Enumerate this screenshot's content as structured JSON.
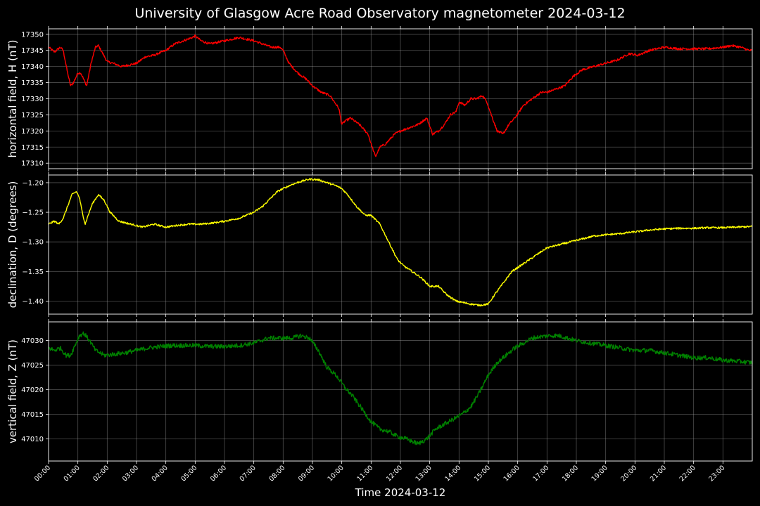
{
  "title": "University of Glasgow Acre Road Observatory magnetometer 2024-03-12",
  "chart_data": {
    "type": "line",
    "title": "University of Glasgow Acre Road Observatory magnetometer 2024-03-12",
    "xlabel": "Time 2024-03-12",
    "x_ticks": [
      "00:00",
      "01:00",
      "02:00",
      "03:00",
      "04:00",
      "05:00",
      "06:00",
      "07:00",
      "08:00",
      "09:00",
      "10:00",
      "11:00",
      "12:00",
      "13:00",
      "14:00",
      "15:00",
      "16:00",
      "17:00",
      "18:00",
      "19:00",
      "20:00",
      "21:00",
      "22:00",
      "23:00"
    ],
    "xlim": [
      0,
      24
    ],
    "grid": true,
    "panels": [
      {
        "name": "horizontal",
        "ylabel": "horizontal field, H (nT)",
        "color": "#ff0000",
        "ylim": [
          17308.3,
          17351.7
        ],
        "yticks": [
          17310,
          17315,
          17320,
          17325,
          17330,
          17335,
          17340,
          17345,
          17350
        ],
        "ytick_labels": [
          "17310",
          "17315",
          "17320",
          "17325",
          "17330",
          "17335",
          "17340",
          "17345",
          "17350"
        ],
        "noise": 0.35,
        "x": [
          0,
          0.2,
          0.4,
          0.5,
          0.65,
          0.75,
          0.85,
          1.0,
          1.1,
          1.2,
          1.3,
          1.45,
          1.6,
          1.7,
          1.85,
          2.0,
          2.2,
          2.5,
          3.0,
          3.3,
          3.6,
          4.0,
          4.3,
          4.6,
          4.9,
          5.0,
          5.2,
          5.5,
          6.0,
          6.5,
          7.0,
          7.3,
          7.6,
          7.9,
          8.0,
          8.2,
          8.5,
          8.8,
          9.0,
          9.3,
          9.6,
          9.9,
          10.0,
          10.1,
          10.3,
          10.6,
          10.9,
          11.0,
          11.15,
          11.3,
          11.5,
          11.8,
          12.0,
          12.3,
          12.6,
          12.9,
          13.1,
          13.3,
          13.5,
          13.7,
          13.9,
          14.0,
          14.2,
          14.4,
          14.6,
          14.8,
          14.95,
          15.1,
          15.3,
          15.5,
          15.7,
          15.9,
          16.2,
          16.5,
          16.8,
          17.0,
          17.3,
          17.6,
          17.9,
          18.2,
          18.6,
          19.0,
          19.4,
          19.8,
          20.1,
          20.5,
          21.0,
          21.5,
          22.0,
          22.5,
          23.0,
          23.3,
          23.6,
          23.9,
          24.0
        ],
        "y": [
          17346,
          17344.5,
          17346,
          17345,
          17338,
          17334,
          17335,
          17338,
          17338,
          17336,
          17334,
          17341,
          17346,
          17346.5,
          17344,
          17341.5,
          17341,
          17340,
          17341,
          17343,
          17343.5,
          17345,
          17347,
          17348,
          17349,
          17349.5,
          17348,
          17347,
          17348,
          17349,
          17348,
          17347,
          17346,
          17346,
          17345,
          17341,
          17338,
          17336,
          17334,
          17332,
          17331,
          17327,
          17322,
          17323,
          17324,
          17322,
          17319,
          17316,
          17312,
          17315,
          17316,
          17319,
          17320,
          17321,
          17322,
          17324,
          17319,
          17320,
          17322,
          17325,
          17326,
          17329,
          17328,
          17330,
          17330,
          17331,
          17329,
          17325,
          17320,
          17319,
          17322,
          17324,
          17328,
          17330,
          17332,
          17332,
          17333,
          17334,
          17337,
          17339,
          17340,
          17341,
          17342,
          17344,
          17343.5,
          17345,
          17346,
          17345.5,
          17345.5,
          17345.5,
          17346,
          17346.5,
          17346,
          17345,
          17345
        ]
      },
      {
        "name": "declination",
        "ylabel": "declination, D (degrees)",
        "color": "#ffff00",
        "ylim": [
          -1.422,
          -1.187
        ],
        "yticks": [
          -1.4,
          -1.35,
          -1.3,
          -1.25,
          -1.2
        ],
        "ytick_labels": [
          "−1.40",
          "−1.35",
          "−1.30",
          "−1.25",
          "−1.20"
        ],
        "noise": 0.0015,
        "x": [
          0,
          0.2,
          0.35,
          0.5,
          0.65,
          0.8,
          0.95,
          1.05,
          1.15,
          1.25,
          1.35,
          1.5,
          1.7,
          1.9,
          2.1,
          2.4,
          2.8,
          3.2,
          3.6,
          4.0,
          4.4,
          4.8,
          5.2,
          5.6,
          6.0,
          6.5,
          7.0,
          7.3,
          7.6,
          7.8,
          8.0,
          8.3,
          8.6,
          8.9,
          9.2,
          9.5,
          9.8,
          10.0,
          10.2,
          10.5,
          10.8,
          11.0,
          11.3,
          11.6,
          11.9,
          12.1,
          12.4,
          12.7,
          13.0,
          13.3,
          13.6,
          13.9,
          14.1,
          14.4,
          14.7,
          15.0,
          15.2,
          15.5,
          15.8,
          16.1,
          16.4,
          16.7,
          17.0,
          17.4,
          17.8,
          18.2,
          18.6,
          19.0,
          19.5,
          20.0,
          20.5,
          21.0,
          21.5,
          22.0,
          22.5,
          23.0,
          23.5,
          24.0
        ],
        "y": [
          -1.27,
          -1.265,
          -1.27,
          -1.26,
          -1.24,
          -1.22,
          -1.215,
          -1.225,
          -1.25,
          -1.27,
          -1.255,
          -1.235,
          -1.22,
          -1.23,
          -1.25,
          -1.265,
          -1.27,
          -1.275,
          -1.27,
          -1.275,
          -1.272,
          -1.27,
          -1.27,
          -1.268,
          -1.265,
          -1.26,
          -1.25,
          -1.24,
          -1.225,
          -1.215,
          -1.21,
          -1.203,
          -1.198,
          -1.194,
          -1.195,
          -1.2,
          -1.205,
          -1.21,
          -1.22,
          -1.24,
          -1.255,
          -1.255,
          -1.27,
          -1.3,
          -1.33,
          -1.34,
          -1.35,
          -1.36,
          -1.375,
          -1.375,
          -1.39,
          -1.4,
          -1.402,
          -1.405,
          -1.407,
          -1.405,
          -1.39,
          -1.37,
          -1.35,
          -1.34,
          -1.33,
          -1.32,
          -1.31,
          -1.305,
          -1.3,
          -1.295,
          -1.29,
          -1.288,
          -1.286,
          -1.283,
          -1.28,
          -1.278,
          -1.277,
          -1.277,
          -1.276,
          -1.276,
          -1.275,
          -1.274
        ]
      },
      {
        "name": "vertical",
        "ylabel": "vertical field, Z (nT)",
        "color": "#008000",
        "ylim": [
          47005.5,
          47033.8
        ],
        "yticks": [
          47010,
          47015,
          47020,
          47025,
          47030
        ],
        "ytick_labels": [
          "47010",
          "47015",
          "47020",
          "47025",
          "47030"
        ],
        "noise": 0.45,
        "x": [
          0,
          0.2,
          0.4,
          0.6,
          0.75,
          0.9,
          1.05,
          1.2,
          1.4,
          1.6,
          1.9,
          2.2,
          2.6,
          3.0,
          3.4,
          3.8,
          4.2,
          4.6,
          5.0,
          5.5,
          6.0,
          6.5,
          7.0,
          7.5,
          8.0,
          8.3,
          8.6,
          8.9,
          9.2,
          9.5,
          9.8,
          10.1,
          10.4,
          10.7,
          11.0,
          11.3,
          11.6,
          11.9,
          12.2,
          12.4,
          12.6,
          12.9,
          13.2,
          13.5,
          13.8,
          14.1,
          14.4,
          14.7,
          15.0,
          15.3,
          15.6,
          15.9,
          16.2,
          16.5,
          16.8,
          17.1,
          17.4,
          17.7,
          18.0,
          18.5,
          19.0,
          19.5,
          20.0,
          20.5,
          21.0,
          21.5,
          22.0,
          22.5,
          23.0,
          23.5,
          24.0
        ],
        "y": [
          47028.5,
          47028,
          47028.5,
          47027,
          47027,
          47029,
          47031,
          47031.5,
          47030,
          47028,
          47027,
          47027.2,
          47027.5,
          47028,
          47028.5,
          47028.8,
          47029,
          47029,
          47029,
          47028.8,
          47028.8,
          47029,
          47029.5,
          47030.5,
          47030.5,
          47030.5,
          47031,
          47030.5,
          47028,
          47024.5,
          47023,
          47020.5,
          47018.5,
          47016,
          47013.5,
          47012,
          47011.5,
          47010.5,
          47010,
          47009.5,
          47009,
          47010,
          47012,
          47013,
          47014,
          47015,
          47016.5,
          47019.5,
          47023,
          47025.5,
          47027,
          47028.5,
          47029.5,
          47030.5,
          47030.8,
          47031,
          47031,
          47030.5,
          47030,
          47029.5,
          47029,
          47028.5,
          47028,
          47028,
          47027.5,
          47027,
          47026.5,
          47026.5,
          47026,
          47025.8,
          47025.5
        ]
      }
    ]
  }
}
